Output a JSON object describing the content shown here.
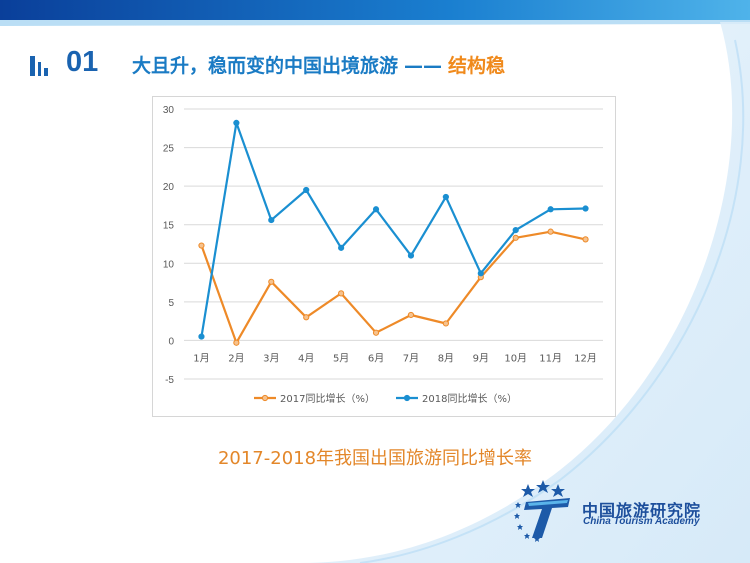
{
  "header": {
    "section_number": "01",
    "title": "大且升，稳而变的中国出境旅游",
    "dash": "——",
    "subtitle": "结构稳"
  },
  "caption": "2017-2018年我国出国旅游同比增长率",
  "logo": {
    "name_cn": "中国旅游研究院",
    "name_en": "China Tourism Academy"
  },
  "colors": {
    "blue": "#1a8fd1",
    "orange": "#ee8a28",
    "title_blue": "#1a7bc4"
  },
  "chart_data": {
    "type": "line",
    "categories": [
      "1月",
      "2月",
      "3月",
      "4月",
      "5月",
      "6月",
      "7月",
      "8月",
      "9月",
      "10月",
      "11月",
      "12月"
    ],
    "ylim": [
      -5,
      30
    ],
    "yticks": [
      30,
      25,
      20,
      15,
      10,
      5,
      0,
      -5
    ],
    "grid": true,
    "legend_position": "bottom",
    "series": [
      {
        "name": "2017同比增长（%）",
        "color": "#ee8a28",
        "values": [
          12.3,
          -0.3,
          7.6,
          3.0,
          6.1,
          1.0,
          3.3,
          2.2,
          8.2,
          13.3,
          14.1,
          13.1
        ]
      },
      {
        "name": "2018同比增长（%）",
        "color": "#1a8fd1",
        "values": [
          0.5,
          28.2,
          15.6,
          19.5,
          12.0,
          17.0,
          11.0,
          18.6,
          8.7,
          14.3,
          17.0,
          17.1
        ]
      }
    ]
  }
}
